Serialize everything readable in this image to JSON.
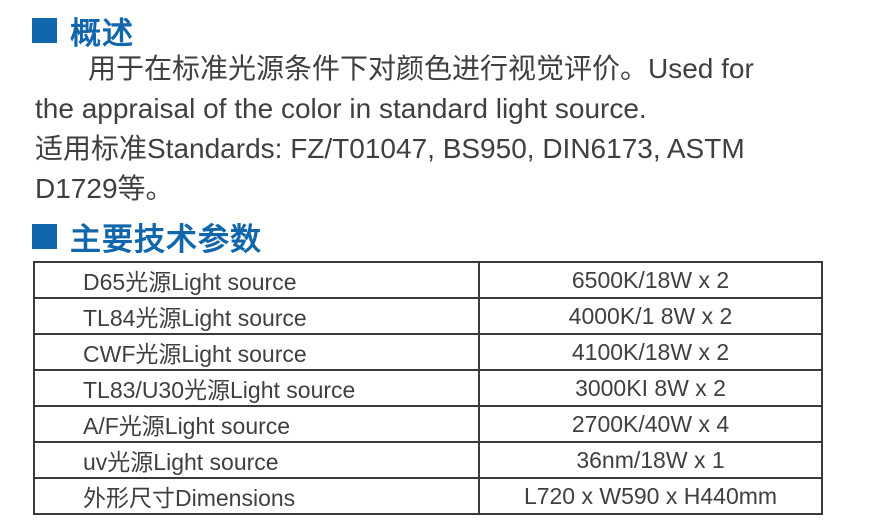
{
  "accent_color": "#1266ab",
  "text_color": "#3f3f3f",
  "overview": {
    "title": "概述",
    "lines": [
      "用于在标准光源条件下对颜色进行视觉评价。Used for",
      "the appraisal of the color in standard light source.",
      "适用标准Standards: FZ/T01047, BS950, DIN6173, ASTM",
      "D1729等。"
    ]
  },
  "specs": {
    "title": "主要技术参数",
    "rows": [
      {
        "label": "D65光源Light source",
        "value": "6500K/18W x 2"
      },
      {
        "label": "TL84光源Light source",
        "value": "4000K/1 8W x 2"
      },
      {
        "label": "CWF光源Light source",
        "value": "4100K/18W x 2"
      },
      {
        "label": "TL83/U30光源Light source",
        "value": "3000KI 8W x 2"
      },
      {
        "label": "A/F光源Light source",
        "value": "2700K/40W x 4"
      },
      {
        "label": "uv光源Light source",
        "value": "36nm/18W x 1"
      },
      {
        "label": "外形尺寸Dimensions",
        "value": "L720 x W590 x H440mm"
      }
    ]
  }
}
